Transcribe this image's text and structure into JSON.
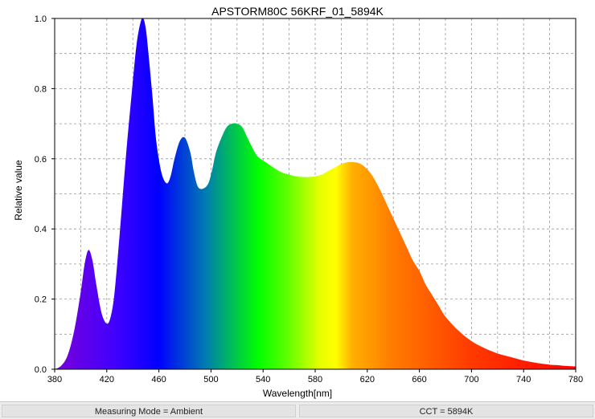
{
  "chart_data": {
    "type": "area",
    "title": "APSTORM80C 56KRF_01_5894K",
    "xlabel": "Wavelength[nm]",
    "ylabel": "Relative value",
    "xlim": [
      380,
      780
    ],
    "ylim": [
      0,
      1.0
    ],
    "x_ticks": [
      "380",
      "420",
      "460",
      "500",
      "540",
      "580",
      "620",
      "660",
      "700",
      "740",
      "780"
    ],
    "y_ticks": [
      "0.0",
      "0.2",
      "0.4",
      "0.6",
      "0.8",
      "1.0"
    ],
    "grid": true,
    "fill": "visible-spectrum gradient",
    "x": [
      380,
      385,
      390,
      395,
      400,
      403,
      406,
      409,
      412,
      416,
      420,
      423,
      426,
      430,
      435,
      440,
      443,
      446,
      448,
      450,
      452,
      455,
      458,
      462,
      466,
      469,
      472,
      476,
      480,
      484,
      487,
      490,
      494,
      498,
      501,
      504,
      508,
      512,
      516,
      520,
      524,
      528,
      532,
      535,
      538,
      542,
      546,
      550,
      555,
      560,
      565,
      570,
      575,
      580,
      585,
      590,
      595,
      600,
      605,
      610,
      615,
      620,
      625,
      630,
      635,
      640,
      645,
      650,
      655,
      660,
      665,
      670,
      675,
      680,
      690,
      700,
      710,
      720,
      730,
      740,
      750,
      760,
      765,
      770,
      775,
      780
    ],
    "y": [
      0.0,
      0.01,
      0.04,
      0.11,
      0.22,
      0.3,
      0.34,
      0.31,
      0.24,
      0.16,
      0.13,
      0.15,
      0.22,
      0.39,
      0.62,
      0.82,
      0.93,
      0.99,
      1.0,
      0.97,
      0.9,
      0.78,
      0.65,
      0.56,
      0.53,
      0.55,
      0.6,
      0.65,
      0.66,
      0.62,
      0.56,
      0.52,
      0.515,
      0.53,
      0.57,
      0.62,
      0.66,
      0.69,
      0.7,
      0.7,
      0.69,
      0.66,
      0.63,
      0.61,
      0.6,
      0.59,
      0.58,
      0.57,
      0.56,
      0.555,
      0.55,
      0.548,
      0.548,
      0.55,
      0.555,
      0.565,
      0.575,
      0.585,
      0.59,
      0.59,
      0.585,
      0.57,
      0.545,
      0.51,
      0.47,
      0.43,
      0.39,
      0.35,
      0.31,
      0.28,
      0.24,
      0.21,
      0.18,
      0.15,
      0.11,
      0.08,
      0.06,
      0.045,
      0.035,
      0.025,
      0.018,
      0.013,
      0.012,
      0.01,
      0.009,
      0.008
    ]
  },
  "status_bar": {
    "measuring_mode": "Measuring Mode = Ambient",
    "cct": "CCT = 5894K"
  }
}
